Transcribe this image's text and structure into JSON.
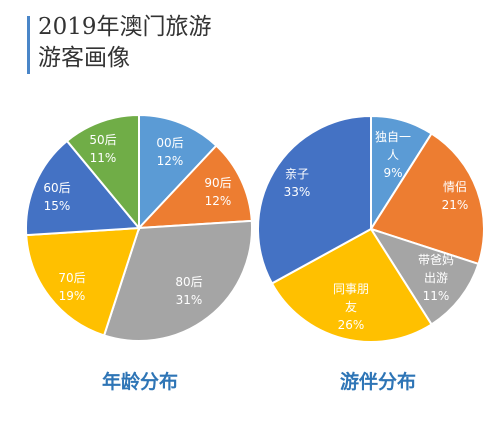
{
  "title": {
    "line1": "2019年澳门旅游",
    "line2": "游客画像"
  },
  "chart_data": [
    {
      "type": "pie",
      "title": "年龄分布",
      "slices": [
        {
          "label": "00后",
          "value": 12,
          "display": "12%",
          "color": "#5b9bd5"
        },
        {
          "label": "90后",
          "value": 12,
          "display": "12%",
          "color": "#ed7d31"
        },
        {
          "label": "80后",
          "value": 31,
          "display": "31%",
          "color": "#a5a5a5"
        },
        {
          "label": "70后",
          "value": 19,
          "display": "19%",
          "color": "#ffc000"
        },
        {
          "label": "60后",
          "value": 15,
          "display": "15%",
          "color": "#4472c4"
        },
        {
          "label": "50后",
          "value": 11,
          "display": "11%",
          "color": "#70ad47"
        }
      ]
    },
    {
      "type": "pie",
      "title": "游伴分布",
      "slices": [
        {
          "label": [
            "独自一",
            "人"
          ],
          "value": 9,
          "display": "9%",
          "color": "#5b9bd5"
        },
        {
          "label": [
            "情侣"
          ],
          "value": 21,
          "display": "21%",
          "color": "#ed7d31"
        },
        {
          "label": [
            "带爸妈",
            "出游"
          ],
          "value": 11,
          "display": "11%",
          "color": "#a5a5a5"
        },
        {
          "label": [
            "同事朋",
            "友"
          ],
          "value": 26,
          "display": "26%",
          "color": "#ffc000"
        },
        {
          "label": [
            "亲子"
          ],
          "value": 33,
          "display": "33%",
          "color": "#4472c4"
        }
      ]
    }
  ]
}
